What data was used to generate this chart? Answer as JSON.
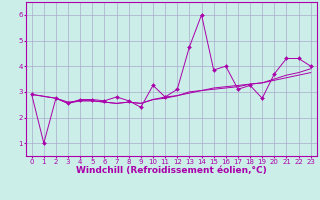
{
  "background_color": "#cceee8",
  "grid_color": "#aaaacc",
  "line_color": "#aa00aa",
  "marker": "D",
  "marker_size": 2,
  "xlabel": "Windchill (Refroidissement éolien,°C)",
  "xlabel_fontsize": 6.5,
  "xlim": [
    -0.5,
    23.5
  ],
  "ylim": [
    0.5,
    6.5
  ],
  "yticks": [
    1,
    2,
    3,
    4,
    5,
    6
  ],
  "xticks": [
    0,
    1,
    2,
    3,
    4,
    5,
    6,
    7,
    8,
    9,
    10,
    11,
    12,
    13,
    14,
    15,
    16,
    17,
    18,
    19,
    20,
    21,
    22,
    23
  ],
  "tick_fontsize": 5,
  "series1": [
    [
      0,
      2.9
    ],
    [
      1,
      1.0
    ],
    [
      2,
      2.75
    ],
    [
      3,
      2.55
    ],
    [
      4,
      2.7
    ],
    [
      5,
      2.7
    ],
    [
      6,
      2.65
    ],
    [
      7,
      2.8
    ],
    [
      8,
      2.65
    ],
    [
      9,
      2.4
    ],
    [
      10,
      3.25
    ],
    [
      11,
      2.8
    ],
    [
      12,
      3.1
    ],
    [
      13,
      4.75
    ],
    [
      14,
      6.0
    ],
    [
      15,
      3.85
    ],
    [
      16,
      4.0
    ],
    [
      17,
      3.1
    ],
    [
      18,
      3.25
    ],
    [
      19,
      2.75
    ],
    [
      20,
      3.7
    ],
    [
      21,
      4.3
    ],
    [
      22,
      4.3
    ],
    [
      23,
      4.0
    ]
  ],
  "series2": [
    [
      0,
      2.9
    ],
    [
      2,
      2.75
    ],
    [
      3,
      2.6
    ],
    [
      4,
      2.65
    ],
    [
      5,
      2.65
    ],
    [
      6,
      2.6
    ],
    [
      7,
      2.55
    ],
    [
      8,
      2.6
    ],
    [
      9,
      2.55
    ],
    [
      10,
      2.7
    ],
    [
      11,
      2.8
    ],
    [
      12,
      2.85
    ],
    [
      13,
      2.95
    ],
    [
      14,
      3.05
    ],
    [
      15,
      3.15
    ],
    [
      16,
      3.2
    ],
    [
      17,
      3.25
    ],
    [
      18,
      3.3
    ],
    [
      19,
      3.35
    ],
    [
      20,
      3.45
    ],
    [
      21,
      3.55
    ],
    [
      22,
      3.65
    ],
    [
      23,
      3.75
    ]
  ],
  "series3": [
    [
      0,
      2.9
    ],
    [
      2,
      2.75
    ],
    [
      3,
      2.55
    ],
    [
      4,
      2.65
    ],
    [
      5,
      2.65
    ],
    [
      6,
      2.6
    ],
    [
      7,
      2.55
    ],
    [
      8,
      2.6
    ],
    [
      9,
      2.55
    ],
    [
      10,
      2.7
    ],
    [
      11,
      2.75
    ],
    [
      12,
      2.85
    ],
    [
      13,
      3.0
    ],
    [
      14,
      3.05
    ],
    [
      15,
      3.1
    ],
    [
      16,
      3.15
    ],
    [
      17,
      3.2
    ],
    [
      18,
      3.3
    ],
    [
      19,
      3.35
    ],
    [
      20,
      3.5
    ],
    [
      21,
      3.65
    ],
    [
      22,
      3.75
    ],
    [
      23,
      3.9
    ]
  ]
}
